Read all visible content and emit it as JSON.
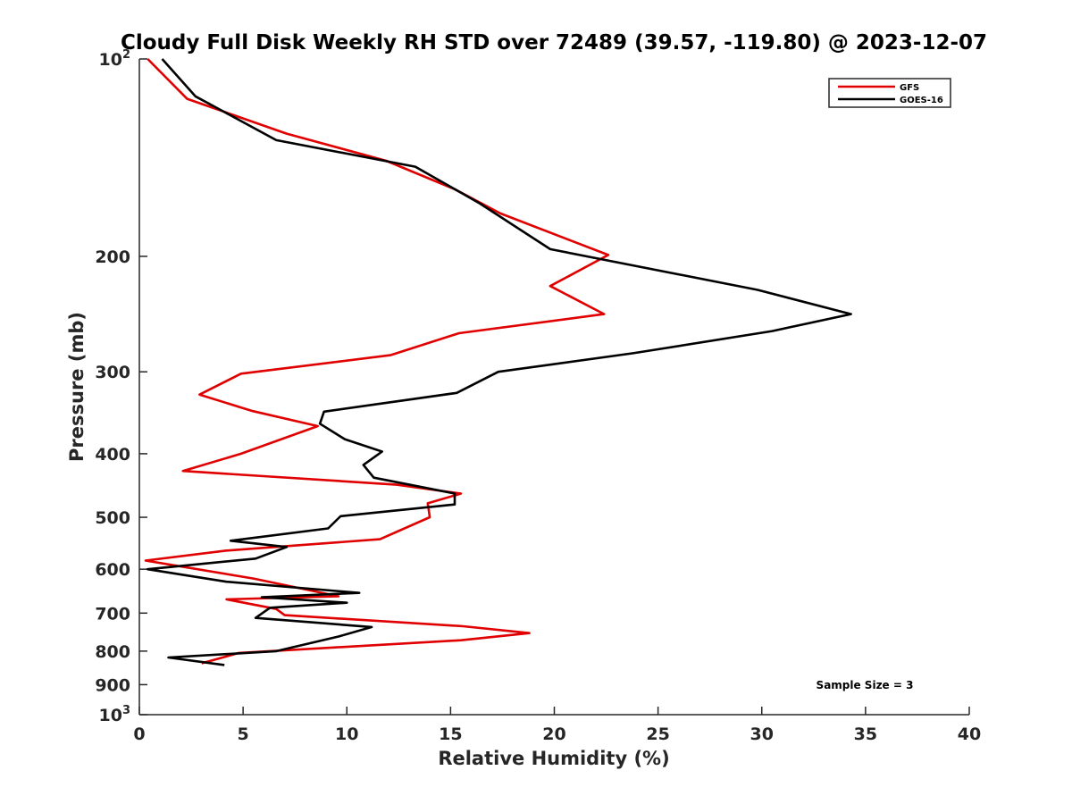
{
  "chart_data": {
    "type": "line",
    "title": "Cloudy Full Disk Weekly RH STD over 72489 (39.57, -119.80) @ 2023-12-07",
    "xlabel": "Relative Humidity (%)",
    "ylabel": "Pressure (mb)",
    "xlim": [
      0,
      40
    ],
    "ylim": [
      100,
      1000
    ],
    "yscale": "log",
    "y_reversed": true,
    "x_ticks": [
      0,
      5,
      10,
      15,
      20,
      25,
      30,
      35,
      40
    ],
    "y_ticks": [
      {
        "value": 100,
        "base": "10",
        "exp": "2"
      },
      {
        "value": 200,
        "label": "200"
      },
      {
        "value": 300,
        "label": "300"
      },
      {
        "value": 400,
        "label": "400"
      },
      {
        "value": 500,
        "label": "500"
      },
      {
        "value": 600,
        "label": "600"
      },
      {
        "value": 700,
        "label": "700"
      },
      {
        "value": 800,
        "label": "800"
      },
      {
        "value": 900,
        "label": "900"
      },
      {
        "value": 1000,
        "base": "10",
        "exp": "3"
      }
    ],
    "legend": {
      "placement": "top-right"
    },
    "annotation": "Sample Size = 3",
    "series": [
      {
        "name": "GFS",
        "color": "#e00000",
        "points": [
          [
            0.4,
            100
          ],
          [
            2.3,
            115
          ],
          [
            7.1,
            130
          ],
          [
            11.9,
            143
          ],
          [
            15.2,
            158
          ],
          [
            17.4,
            172
          ],
          [
            22.6,
            199
          ],
          [
            19.8,
            222
          ],
          [
            22.4,
            245
          ],
          [
            15.4,
            262
          ],
          [
            12.1,
            283
          ],
          [
            4.9,
            302
          ],
          [
            2.9,
            325
          ],
          [
            5.4,
            344
          ],
          [
            8.6,
            363
          ],
          [
            4.9,
            400
          ],
          [
            2.1,
            425
          ],
          [
            12.4,
            446
          ],
          [
            15.5,
            460
          ],
          [
            13.9,
            476
          ],
          [
            14.0,
            500
          ],
          [
            11.6,
            540
          ],
          [
            4.2,
            562
          ],
          [
            0.3,
            582
          ],
          [
            5.5,
            620
          ],
          [
            9.6,
            660
          ],
          [
            4.2,
            667
          ],
          [
            6.6,
            690
          ],
          [
            7.0,
            705
          ],
          [
            15.6,
            733
          ],
          [
            18.8,
            751
          ],
          [
            15.5,
            770
          ],
          [
            4.8,
            805
          ],
          [
            3.0,
            835
          ]
        ]
      },
      {
        "name": "GOES-16",
        "color": "#000000",
        "points": [
          [
            1.1,
            100
          ],
          [
            2.7,
            114
          ],
          [
            6.6,
            133
          ],
          [
            13.3,
            146
          ],
          [
            16.4,
            166
          ],
          [
            19.8,
            195
          ],
          [
            29.8,
            225
          ],
          [
            34.3,
            245
          ],
          [
            30.5,
            260
          ],
          [
            23.8,
            281
          ],
          [
            17.3,
            300
          ],
          [
            15.3,
            323
          ],
          [
            8.9,
            345
          ],
          [
            8.7,
            360
          ],
          [
            9.9,
            380
          ],
          [
            11.7,
            397
          ],
          [
            10.8,
            416
          ],
          [
            11.3,
            435
          ],
          [
            15.2,
            460
          ],
          [
            15.2,
            478
          ],
          [
            9.7,
            498
          ],
          [
            9.1,
            520
          ],
          [
            4.4,
            543
          ],
          [
            7.1,
            555
          ],
          [
            5.6,
            578
          ],
          [
            0.4,
            600
          ],
          [
            4.2,
            627
          ],
          [
            10.6,
            652
          ],
          [
            5.9,
            662
          ],
          [
            10.0,
            675
          ],
          [
            6.3,
            687
          ],
          [
            5.6,
            712
          ],
          [
            11.2,
            735
          ],
          [
            9.6,
            760
          ],
          [
            6.6,
            800
          ],
          [
            1.4,
            818
          ],
          [
            4.1,
            840
          ]
        ]
      }
    ]
  }
}
